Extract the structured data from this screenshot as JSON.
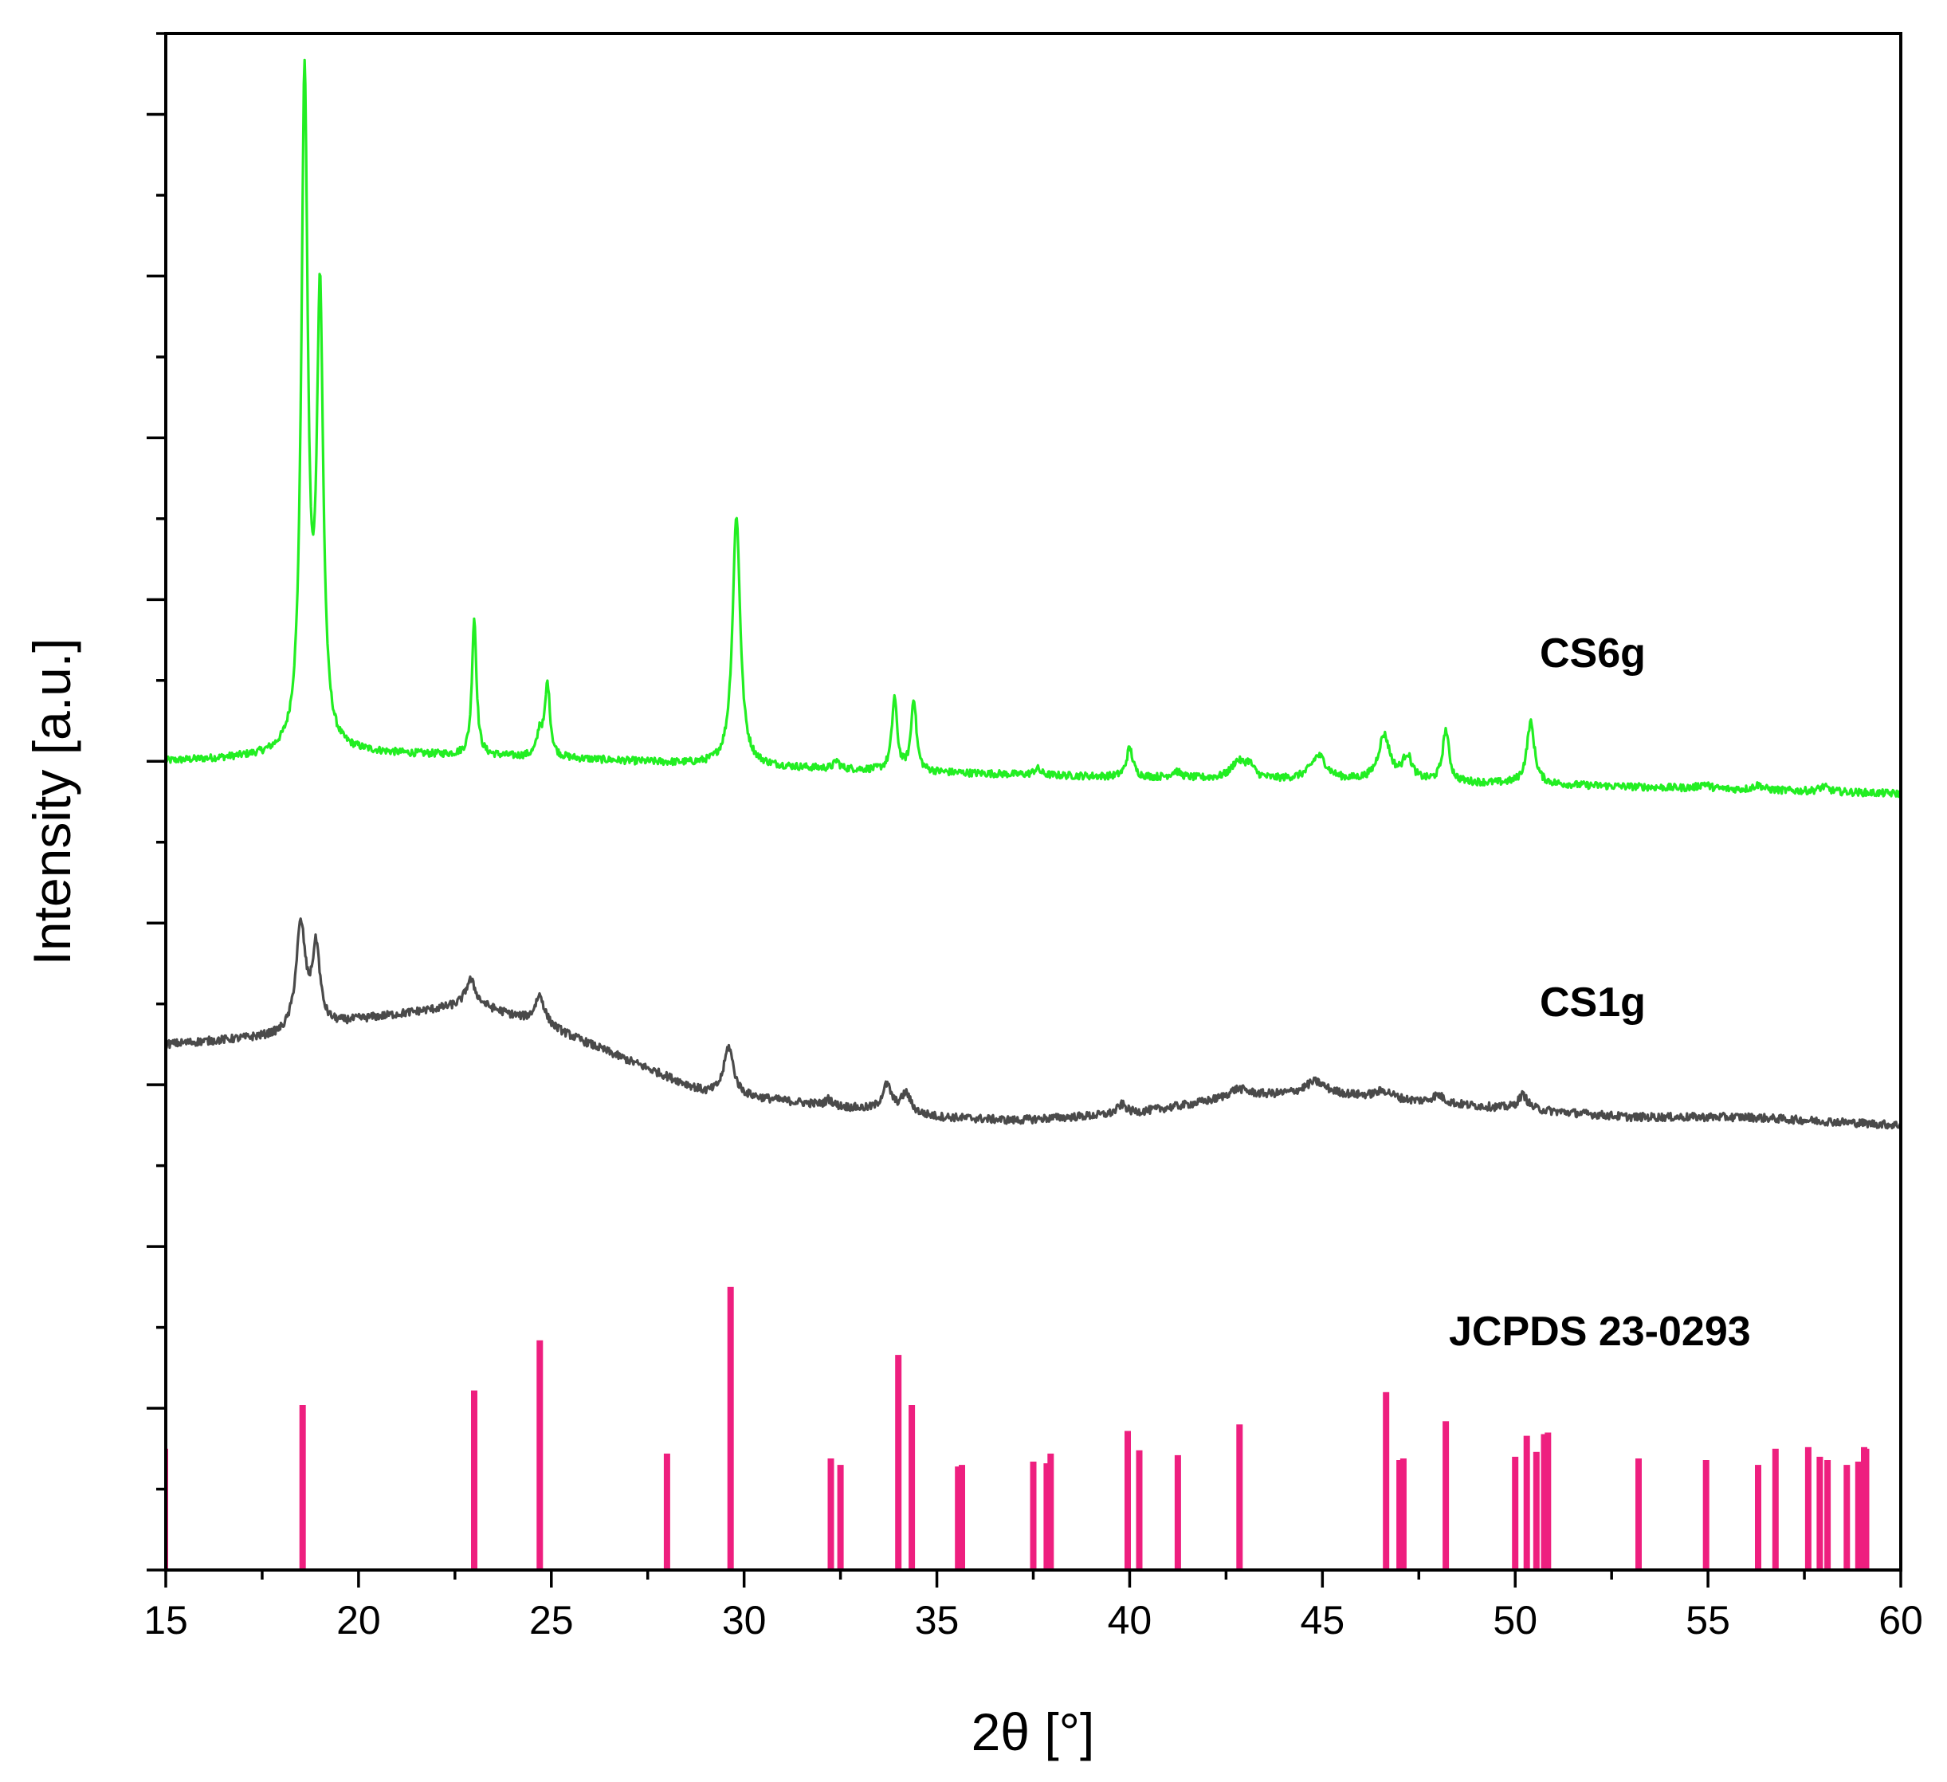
{
  "chart_data": {
    "type": "line",
    "xlabel": "2θ [°]",
    "ylabel": "Intensity [a.u.]",
    "xlim": [
      15,
      60
    ],
    "ylim": [
      0,
      9.5
    ],
    "x_ticks": [
      "15",
      "20",
      "25",
      "30",
      "35",
      "40",
      "45",
      "50",
      "55",
      "60"
    ],
    "y_tick_labels_shown": false,
    "grid": false,
    "series": [
      {
        "name": "CS6g",
        "color": "#22ee22",
        "baseline": [
          [
            15,
            5.0
          ],
          [
            20,
            5.05
          ],
          [
            25,
            5.02
          ],
          [
            30,
            4.97
          ],
          [
            35,
            4.93
          ],
          [
            40,
            4.9
          ],
          [
            45,
            4.88
          ],
          [
            50,
            4.86
          ],
          [
            55,
            4.83
          ],
          [
            60,
            4.8
          ]
        ],
        "peaks": [
          {
            "x": 18.6,
            "height": 4.15,
            "width": 0.1
          },
          {
            "x": 19.0,
            "height": 2.75,
            "width": 0.1
          },
          {
            "x": 23.0,
            "height": 0.85,
            "width": 0.07
          },
          {
            "x": 24.7,
            "height": 0.15,
            "width": 0.08
          },
          {
            "x": 24.9,
            "height": 0.45,
            "width": 0.08
          },
          {
            "x": 29.8,
            "height": 1.55,
            "width": 0.12
          },
          {
            "x": 32.4,
            "height": 0.05,
            "width": 0.08
          },
          {
            "x": 33.9,
            "height": 0.45,
            "width": 0.08
          },
          {
            "x": 34.4,
            "height": 0.45,
            "width": 0.08
          },
          {
            "x": 37.6,
            "height": 0.04,
            "width": 0.1
          },
          {
            "x": 40.0,
            "height": 0.18,
            "width": 0.1
          },
          {
            "x": 41.2,
            "height": 0.04,
            "width": 0.15
          },
          {
            "x": 42.8,
            "height": 0.1,
            "width": 0.2
          },
          {
            "x": 43.1,
            "height": 0.08,
            "width": 0.15
          },
          {
            "x": 44.9,
            "height": 0.15,
            "width": 0.25
          },
          {
            "x": 46.6,
            "height": 0.28,
            "width": 0.18
          },
          {
            "x": 47.2,
            "height": 0.15,
            "width": 0.15
          },
          {
            "x": 48.2,
            "height": 0.32,
            "width": 0.1
          },
          {
            "x": 50.4,
            "height": 0.38,
            "width": 0.12
          },
          {
            "x": 54.9,
            "height": 0.03,
            "width": 0.15
          },
          {
            "x": 56.3,
            "height": 0.03,
            "width": 0.15
          },
          {
            "x": 58.0,
            "height": 0.03,
            "width": 0.15
          }
        ]
      },
      {
        "name": "CS1g",
        "color": "#4a4a4a",
        "baseline": [
          [
            15,
            3.25
          ],
          [
            18,
            3.3
          ],
          [
            20,
            3.4
          ],
          [
            23,
            3.5
          ],
          [
            25,
            3.35
          ],
          [
            27,
            3.15
          ],
          [
            29,
            2.95
          ],
          [
            31,
            2.9
          ],
          [
            33,
            2.85
          ],
          [
            35,
            2.8
          ],
          [
            37,
            2.78
          ],
          [
            40,
            2.82
          ],
          [
            43,
            2.93
          ],
          [
            45,
            2.95
          ],
          [
            47,
            2.9
          ],
          [
            50,
            2.85
          ],
          [
            53,
            2.8
          ],
          [
            56,
            2.8
          ],
          [
            60,
            2.75
          ]
        ],
        "peaks": [
          {
            "x": 18.5,
            "height": 0.65,
            "width": 0.15
          },
          {
            "x": 18.9,
            "height": 0.48,
            "width": 0.12
          },
          {
            "x": 22.9,
            "height": 0.15,
            "width": 0.15
          },
          {
            "x": 24.7,
            "height": 0.18,
            "width": 0.15
          },
          {
            "x": 29.6,
            "height": 0.3,
            "width": 0.15
          },
          {
            "x": 32.2,
            "height": 0.04,
            "width": 0.1
          },
          {
            "x": 33.7,
            "height": 0.16,
            "width": 0.15
          },
          {
            "x": 34.2,
            "height": 0.12,
            "width": 0.15
          },
          {
            "x": 39.8,
            "height": 0.06,
            "width": 0.15
          },
          {
            "x": 42.8,
            "height": 0.05,
            "width": 0.3
          },
          {
            "x": 44.8,
            "height": 0.07,
            "width": 0.3
          },
          {
            "x": 46.6,
            "height": 0.05,
            "width": 0.3
          },
          {
            "x": 48.0,
            "height": 0.05,
            "width": 0.2
          },
          {
            "x": 50.2,
            "height": 0.09,
            "width": 0.15
          }
        ]
      },
      {
        "name": "JCPDS 23-0293",
        "type": "stick",
        "color": "#ee1f7f",
        "x": [
          18.55,
          23.0,
          24.7,
          28.0,
          29.65,
          32.25,
          32.5,
          34.0,
          34.35,
          35.55,
          35.65,
          37.5,
          37.85,
          37.95,
          39.95,
          40.25,
          41.25,
          42.85,
          46.65,
          47.0,
          47.1,
          48.2,
          50.0,
          50.3,
          50.55,
          50.75,
          50.85,
          53.2,
          54.95,
          56.3,
          56.75,
          57.6,
          57.9,
          58.1,
          58.6,
          58.9,
          59.05,
          59.1
        ],
        "values": [
          1.02,
          1.11,
          1.42,
          0.72,
          1.75,
          0.69,
          0.65,
          1.33,
          1.02,
          0.64,
          0.65,
          0.67,
          0.66,
          0.72,
          0.86,
          0.74,
          0.71,
          0.9,
          1.1,
          0.68,
          0.69,
          0.92,
          0.7,
          0.83,
          0.73,
          0.84,
          0.85,
          0.69,
          0.68,
          0.65,
          0.75,
          0.76,
          0.7,
          0.68,
          0.65,
          0.67,
          0.76,
          0.75
        ]
      }
    ],
    "annotations": [
      "CS6g",
      "CS1g",
      "JCPDS 23-0293"
    ]
  }
}
